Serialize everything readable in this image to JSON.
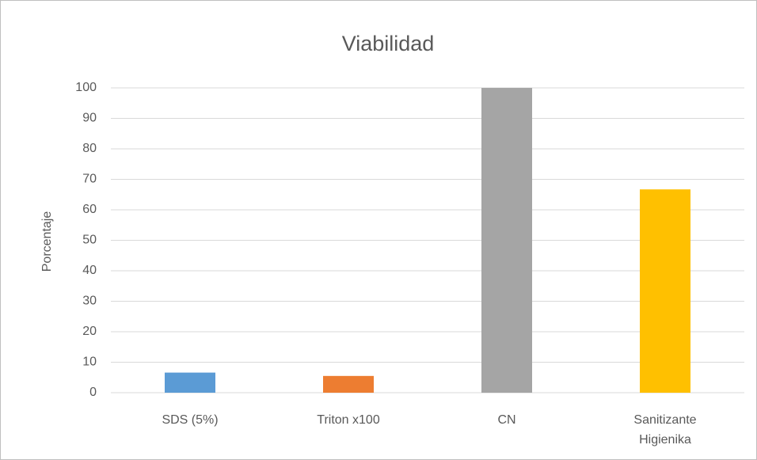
{
  "chart_data": {
    "type": "bar",
    "title": "Viabilidad",
    "y_label": "Porcentaje",
    "categories": [
      "SDS (5%)",
      "Triton x100",
      "CN",
      "Sanitizante Higienika"
    ],
    "values": [
      6.6,
      5.5,
      100,
      66.7
    ],
    "colors": [
      "#5b9bd5",
      "#ed7d31",
      "#a5a5a5",
      "#ffc000"
    ],
    "ylim": [
      0,
      100
    ],
    "yticks": [
      0,
      10,
      20,
      30,
      40,
      50,
      60,
      70,
      80,
      90,
      100
    ],
    "grid": true
  }
}
